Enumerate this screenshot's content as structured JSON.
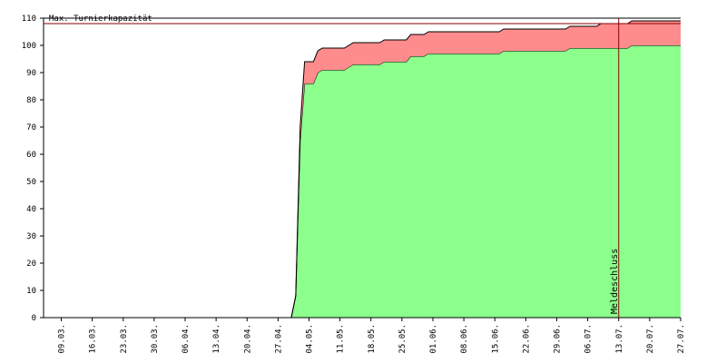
{
  "chart_data": {
    "type": "stacked-area",
    "x": [
      "05.03.",
      "30.04.",
      "01.05.",
      "02.05.",
      "03.05.",
      "05.05.",
      "06.05.",
      "07.05.",
      "12.05.",
      "14.05.",
      "20.05.",
      "21.05.",
      "26.05.",
      "27.05.",
      "30.05.",
      "31.05.",
      "16.06.",
      "17.06.",
      "01.07.",
      "02.07.",
      "08.07.",
      "09.07.",
      "15.07.",
      "16.07.",
      "27.07."
    ],
    "series": [
      {
        "color": "#8cff8c",
        "values": [
          0,
          0,
          8,
          65,
          86,
          86,
          90,
          91,
          91,
          93,
          93,
          94,
          94,
          96,
          96,
          97,
          97,
          98,
          98,
          99,
          99,
          99,
          99,
          100,
          100
        ]
      },
      {
        "color": "#ff8c8c",
        "values": [
          0,
          0,
          0,
          5,
          8,
          8,
          8,
          8,
          8,
          8,
          8,
          8,
          8,
          8,
          8,
          8,
          8,
          8,
          8,
          8,
          8,
          9,
          9,
          9,
          9
        ]
      }
    ],
    "xlim": [
      "05.03.",
      "27.07."
    ],
    "xticks": [
      "09.03.",
      "16.03.",
      "23.03.",
      "30.03.",
      "06.04.",
      "13.04.",
      "20.04.",
      "27.04.",
      "04.05.",
      "11.05.",
      "18.05.",
      "25.05.",
      "01.06.",
      "08.06.",
      "15.06.",
      "22.06.",
      "29.06.",
      "06.07.",
      "13.07.",
      "20.07.",
      "27.07."
    ],
    "ylim": [
      0,
      110
    ],
    "yticks": [
      0,
      10,
      20,
      30,
      40,
      50,
      60,
      70,
      80,
      90,
      100,
      110
    ],
    "capacity": {
      "value": 108,
      "label": "Max. Turnierkapazität",
      "color": "#8b0000"
    },
    "deadline": {
      "x": "13.07.",
      "label": "Meldeschluss",
      "color": "#8b0000"
    }
  }
}
